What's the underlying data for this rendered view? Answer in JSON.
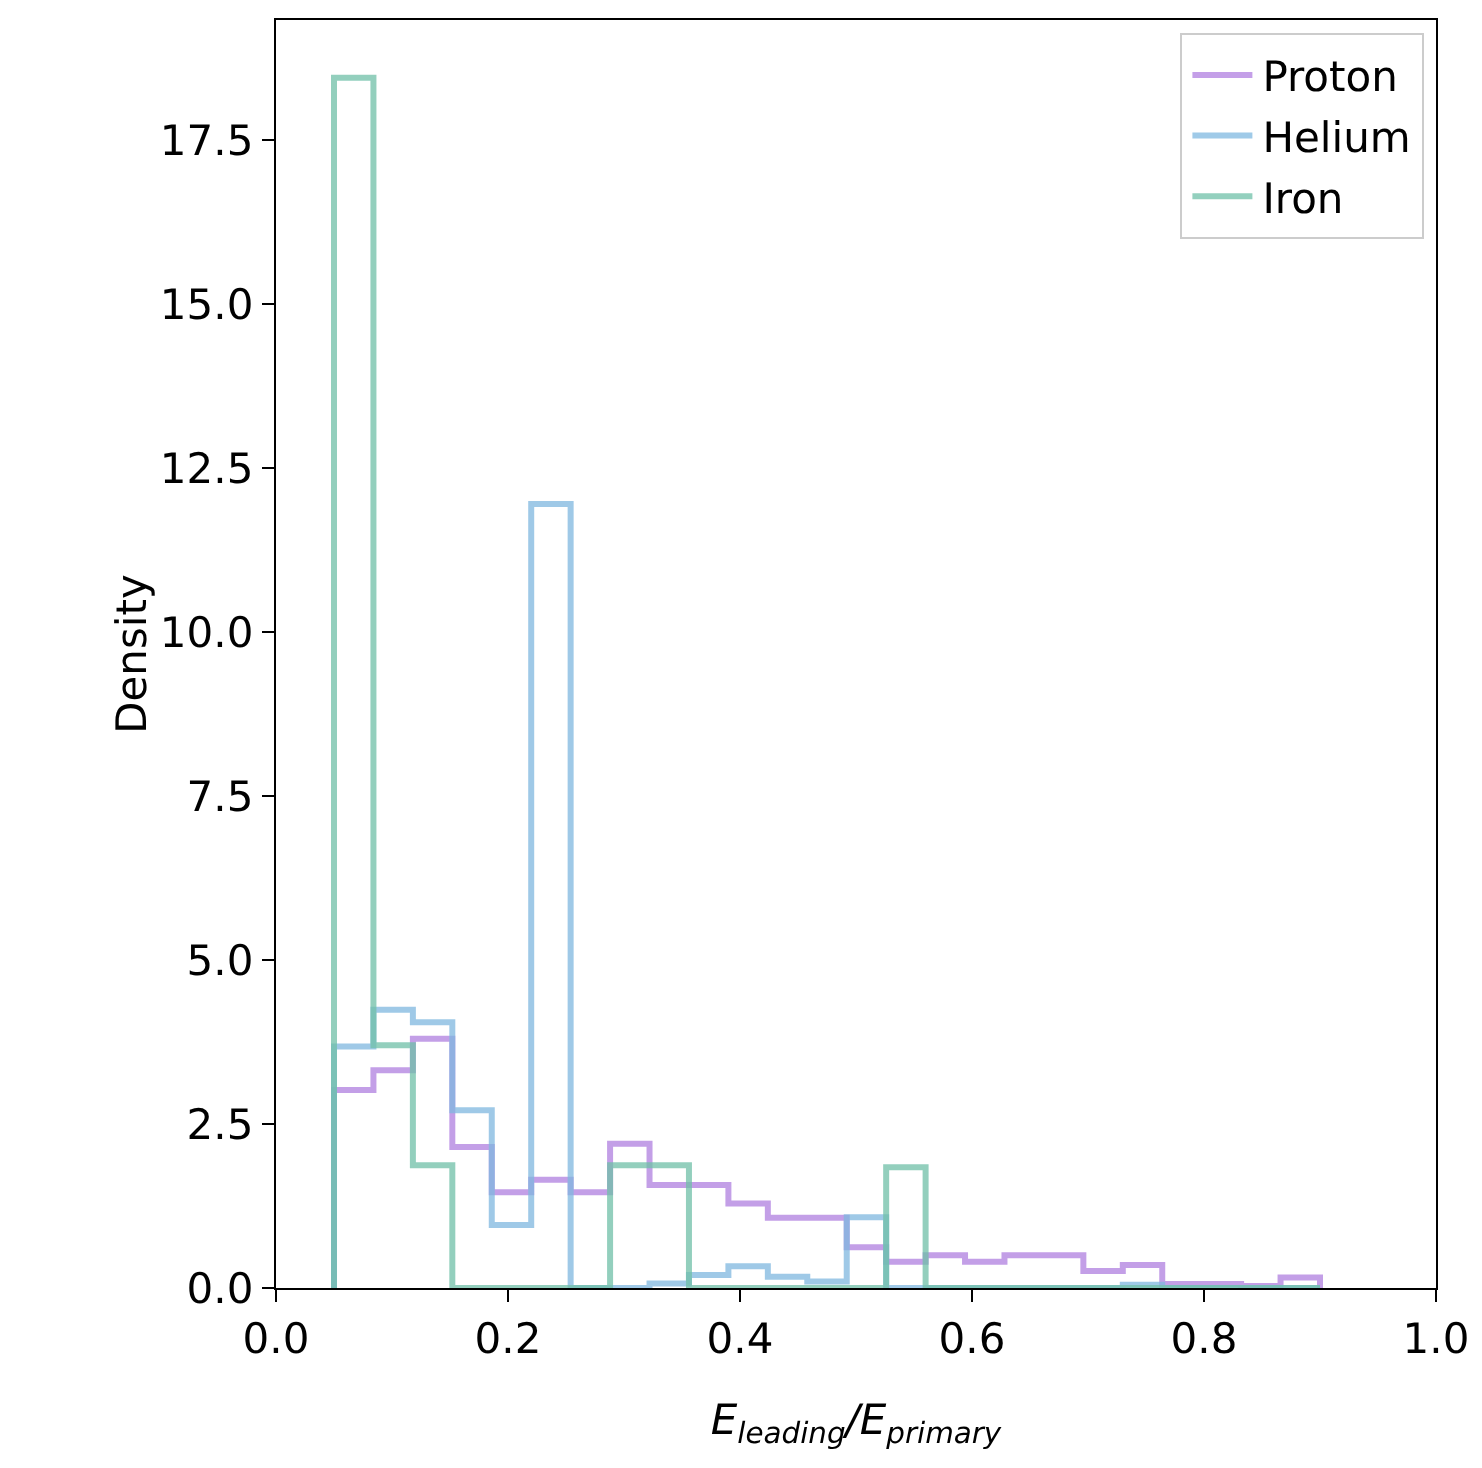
{
  "chart_data": {
    "type": "histogram",
    "xlabel": "E$_{leading}$/E$_{primary}$",
    "ylabel": "Density",
    "bins": [
      0.05,
      0.084,
      0.118,
      0.152,
      0.186,
      0.22,
      0.254,
      0.288,
      0.322,
      0.356,
      0.39,
      0.424,
      0.458,
      0.492,
      0.526,
      0.56,
      0.594,
      0.628,
      0.662,
      0.696,
      0.73,
      0.764,
      0.798,
      0.832,
      0.866,
      0.9
    ],
    "series": [
      {
        "name": "Proton",
        "color": "#b07fe0",
        "values": [
          3.02,
          3.32,
          3.8,
          2.15,
          1.46,
          1.65,
          1.46,
          2.2,
          1.57,
          1.57,
          1.29,
          1.07,
          1.07,
          0.62,
          0.4,
          0.5,
          0.4,
          0.5,
          0.5,
          0.26,
          0.35,
          0.06,
          0.06,
          0.03,
          0.16
        ]
      },
      {
        "name": "Helium",
        "color": "#7fb8e0",
        "values": [
          3.68,
          4.24,
          4.05,
          2.71,
          0.96,
          11.95,
          0,
          0,
          0.07,
          0.2,
          0.33,
          0.17,
          0.1,
          1.08,
          0,
          0,
          0,
          0,
          0,
          0,
          0.05,
          0,
          0,
          0,
          0
        ]
      },
      {
        "name": "Iron",
        "color": "#6fc0a8",
        "values": [
          18.45,
          3.7,
          1.87,
          0,
          0,
          0,
          0,
          1.87,
          1.87,
          0,
          0,
          0,
          0,
          0,
          1.84,
          0,
          0,
          0,
          0,
          0,
          0,
          0,
          0,
          0,
          0
        ]
      }
    ],
    "xlim": [
      0,
      1
    ],
    "xticks": [
      {
        "value": 0,
        "label": "0.0"
      },
      {
        "value": 0.2,
        "label": "0.2"
      },
      {
        "value": 0.4,
        "label": "0.4"
      },
      {
        "value": 0.6,
        "label": "0.6"
      },
      {
        "value": 0.8,
        "label": "0.8"
      },
      {
        "value": 1,
        "label": "1.0"
      }
    ],
    "ylim": [
      0,
      19.33
    ],
    "yticks": [
      {
        "value": 0,
        "label": "0.0"
      },
      2.5,
      {
        "value": 5,
        "label": "5.0"
      },
      7.5,
      {
        "value": 10,
        "label": "10.0"
      },
      12.5,
      {
        "value": 15,
        "label": "15.0"
      },
      17.5
    ],
    "legend": "top right",
    "grid": false
  }
}
